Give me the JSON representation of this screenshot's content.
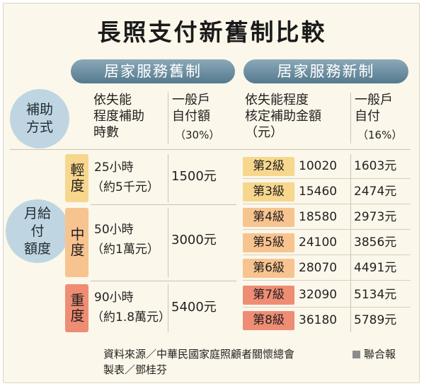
{
  "title": "長照支付新舊制比較",
  "old_system": {
    "label": "居家服務舊制",
    "col_hours_header": "依失能\n程度補助\n時數",
    "col_pay_header": "一般戶\n自付額",
    "col_pay_pct": "（30%）",
    "rows": [
      {
        "level": "輕度",
        "hours": "25小時",
        "approx": "（約5千元）",
        "pay": "1500元",
        "color": "#f6d78d"
      },
      {
        "level": "中度",
        "hours": "50小時",
        "approx": "（約1萬元）",
        "pay": "3000元",
        "color": "#f7c48f"
      },
      {
        "level": "重度",
        "hours": "90小時",
        "approx": "（約1.8萬元）",
        "pay": "5400元",
        "color": "#ee8d74"
      }
    ]
  },
  "new_system": {
    "label": "居家服務新制",
    "col_amount_header": "依失能程度\n核定補助金額\n（元）",
    "col_pay_header": "一般戶\n自付",
    "col_pay_pct": "（16%）",
    "rows": [
      {
        "grade": "第2級",
        "amount": "10020",
        "pay": "1603元",
        "color": "#f6d78d"
      },
      {
        "grade": "第3級",
        "amount": "15460",
        "pay": "2474元",
        "color": "#f6d78d"
      },
      {
        "grade": "第4級",
        "amount": "18580",
        "pay": "2973元",
        "color": "#f7c48f"
      },
      {
        "grade": "第5級",
        "amount": "24100",
        "pay": "3856元",
        "color": "#f7c48f"
      },
      {
        "grade": "第6級",
        "amount": "28070",
        "pay": "4491元",
        "color": "#f7c48f"
      },
      {
        "grade": "第7級",
        "amount": "32090",
        "pay": "5134元",
        "color": "#ee8d74"
      },
      {
        "grade": "第8級",
        "amount": "36180",
        "pay": "5789元",
        "color": "#ee8d74"
      }
    ]
  },
  "row_labels": {
    "method": "補助\n方式",
    "amount": "月給付\n額度"
  },
  "footer": {
    "source": "資料來源／中華民國家庭照顧者關懷總會",
    "credit": "製表／鄧桂芬",
    "publisher": "聯合報"
  }
}
